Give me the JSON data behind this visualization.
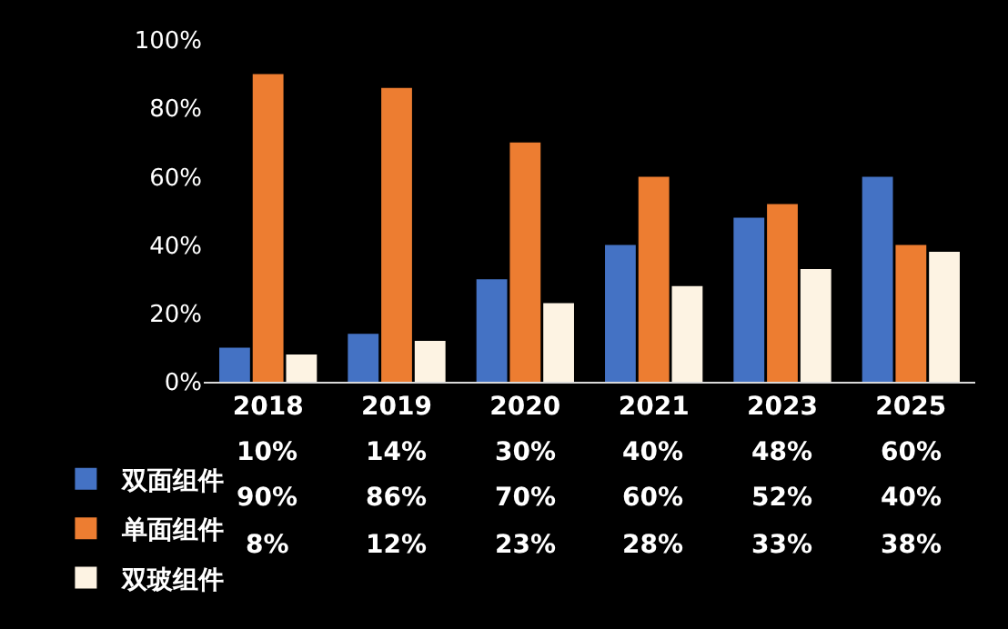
{
  "chart_data": {
    "type": "bar",
    "categories": [
      "2018",
      "2019",
      "2020",
      "2021",
      "2023",
      "2025"
    ],
    "series": [
      {
        "name": "双面组件",
        "color": "#4472c4",
        "values": [
          10,
          14,
          30,
          40,
          48,
          60
        ],
        "value_labels": [
          "10%",
          "14%",
          "30%",
          "40%",
          "48%",
          "60%"
        ]
      },
      {
        "name": "单面组件",
        "color": "#ed7d31",
        "values": [
          90,
          86,
          70,
          60,
          52,
          40
        ],
        "value_labels": [
          "90%",
          "86%",
          "70%",
          "60%",
          "52%",
          "40%"
        ]
      },
      {
        "name": "双玻组件",
        "color": "#fdf3e3",
        "values": [
          8,
          12,
          23,
          28,
          33,
          38
        ],
        "value_labels": [
          "8%",
          "12%",
          "23%",
          "28%",
          "33%",
          "38%"
        ]
      }
    ],
    "ylim": [
      0,
      100
    ],
    "yticks": [
      {
        "value": 0,
        "label": "0%"
      },
      {
        "value": 20,
        "label": "20%"
      },
      {
        "value": 40,
        "label": "40%"
      },
      {
        "value": 60,
        "label": "60%"
      },
      {
        "value": 80,
        "label": "80%"
      },
      {
        "value": 100,
        "label": "100%"
      }
    ],
    "grid": false,
    "legend": "bottom left"
  }
}
